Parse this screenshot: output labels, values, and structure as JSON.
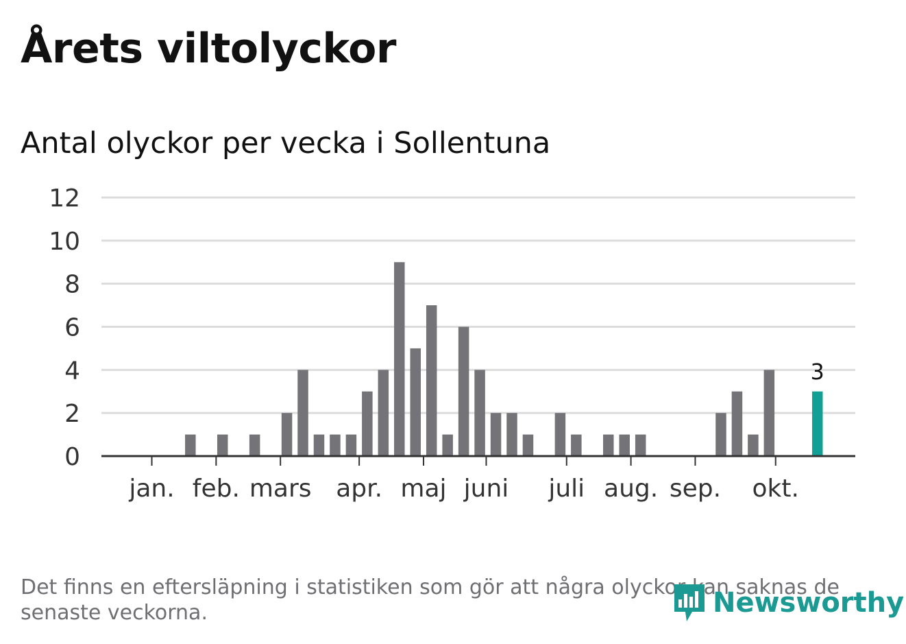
{
  "title": "Årets viltolyckor",
  "subtitle": "Antal olyckor per vecka i Sollentuna",
  "footnote": "Det finns en eftersläpning i statistiken som gör att några olyckor kan saknas de senaste veckorna.",
  "logo": {
    "text": "Newsworthy",
    "icon": "bar-chart-logo-icon"
  },
  "colors": {
    "bar": "#737378",
    "highlight": "#12a096",
    "grid": "#dcdcdc",
    "axis": "#333333",
    "text": "#333333"
  },
  "chart_data": {
    "type": "bar",
    "title": "Antal olyckor per vecka i Sollentuna",
    "xlabel": "",
    "ylabel": "",
    "ylim": [
      0,
      12
    ],
    "yticks": [
      "0",
      "2",
      "4",
      "6",
      "8",
      "10",
      "12"
    ],
    "x": [
      1,
      2,
      3,
      4,
      5,
      6,
      7,
      8,
      9,
      10,
      11,
      12,
      13,
      14,
      15,
      16,
      17,
      18,
      19,
      20,
      21,
      22,
      23,
      24,
      25,
      26,
      27,
      28,
      29,
      30,
      31,
      32,
      33,
      34,
      35,
      36,
      37,
      38,
      39,
      40,
      41,
      42,
      43,
      44,
      45,
      46,
      47
    ],
    "values": [
      0,
      0,
      0,
      0,
      0,
      1,
      0,
      1,
      0,
      1,
      0,
      2,
      4,
      1,
      1,
      1,
      3,
      4,
      9,
      5,
      7,
      1,
      6,
      4,
      2,
      2,
      1,
      0,
      2,
      1,
      0,
      1,
      1,
      1,
      0,
      0,
      0,
      0,
      2,
      3,
      1,
      4,
      0,
      0,
      3,
      0,
      0
    ],
    "highlight_index": 44,
    "highlight_label": "3",
    "months": [
      {
        "label": "jan.",
        "week": 3.6
      },
      {
        "label": "feb.",
        "week": 7.6
      },
      {
        "label": "mars",
        "week": 11.6
      },
      {
        "label": "apr.",
        "week": 16.5
      },
      {
        "label": "maj",
        "week": 20.5
      },
      {
        "label": "juni",
        "week": 24.4
      },
      {
        "label": "juli",
        "week": 29.4
      },
      {
        "label": "aug.",
        "week": 33.4
      },
      {
        "label": "sep.",
        "week": 37.4
      },
      {
        "label": "okt.",
        "week": 42.4
      }
    ]
  }
}
